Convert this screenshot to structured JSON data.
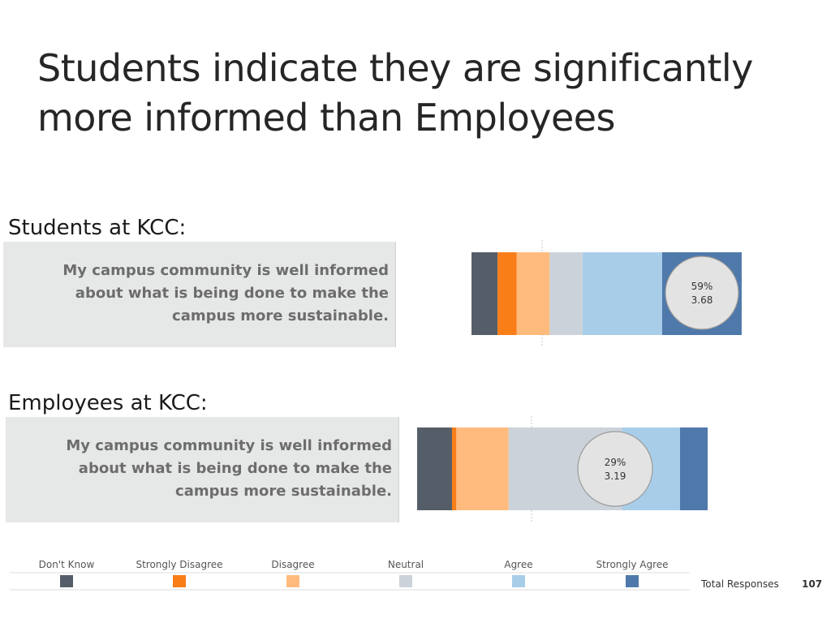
{
  "title": "Students indicate they are significantly more informed than Employees",
  "chart_data": {
    "type": "bar",
    "stacked": true,
    "orientation": "horizontal",
    "legend_position": "bottom",
    "categories": [
      "Don't Know",
      "Strongly Disagree",
      "Disagree",
      "Neutral",
      "Agree",
      "Strongly Agree"
    ],
    "colors": [
      "#555e68",
      "#f97e18",
      "#ffbb7d",
      "#cbd2d9",
      "#a8cde9",
      "#4f79ab"
    ],
    "rows": [
      {
        "group_label": "Students at KCC:",
        "question": "My campus community is well informed about what is being done to make the campus more sustainable.",
        "values": [
          9.5,
          7,
          12,
          12,
          29,
          29
        ],
        "badge_percent": "59%",
        "badge_score": "3.68"
      },
      {
        "group_label": "Employees at KCC:",
        "question": "My campus community is well informed about what is being done to make the campus more sustainable.",
        "values": [
          12,
          1.5,
          18,
          39,
          20,
          9.5
        ],
        "badge_percent": "29%",
        "badge_score": "3.19"
      }
    ],
    "total_responses_label": "Total Responses",
    "total_responses": "107"
  }
}
